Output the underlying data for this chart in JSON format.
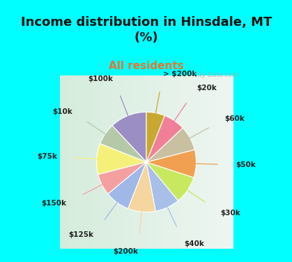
{
  "title": "Income distribution in Hinsdale, MT\n(%)",
  "subtitle": "All residents",
  "bg_cyan": "#00FFFF",
  "bg_chart_left": "#c8eedc",
  "bg_chart_right": "#e8f4f0",
  "labels": [
    "$100k",
    "$10k",
    "$75k",
    "$150k",
    "$125k",
    "$200k",
    "$40k",
    "$30k",
    "$50k",
    "$60k",
    "$20k",
    "> $200k"
  ],
  "sizes": [
    12,
    7,
    10,
    7,
    8,
    9,
    8,
    9,
    9,
    8,
    7,
    6
  ],
  "colors": [
    "#9b8ec4",
    "#b5c9a8",
    "#f5f07a",
    "#f4a0a0",
    "#a0b8e8",
    "#f5d5a0",
    "#a8c0e8",
    "#c8e860",
    "#f0a050",
    "#c8c0a0",
    "#f08098",
    "#c8a830"
  ],
  "label_color": "#222222",
  "title_color": "#111111",
  "subtitle_color": "#e07830",
  "watermark": "  City-Data.com",
  "title_fontsize": 13,
  "subtitle_fontsize": 11,
  "label_fontsize": 7.5
}
